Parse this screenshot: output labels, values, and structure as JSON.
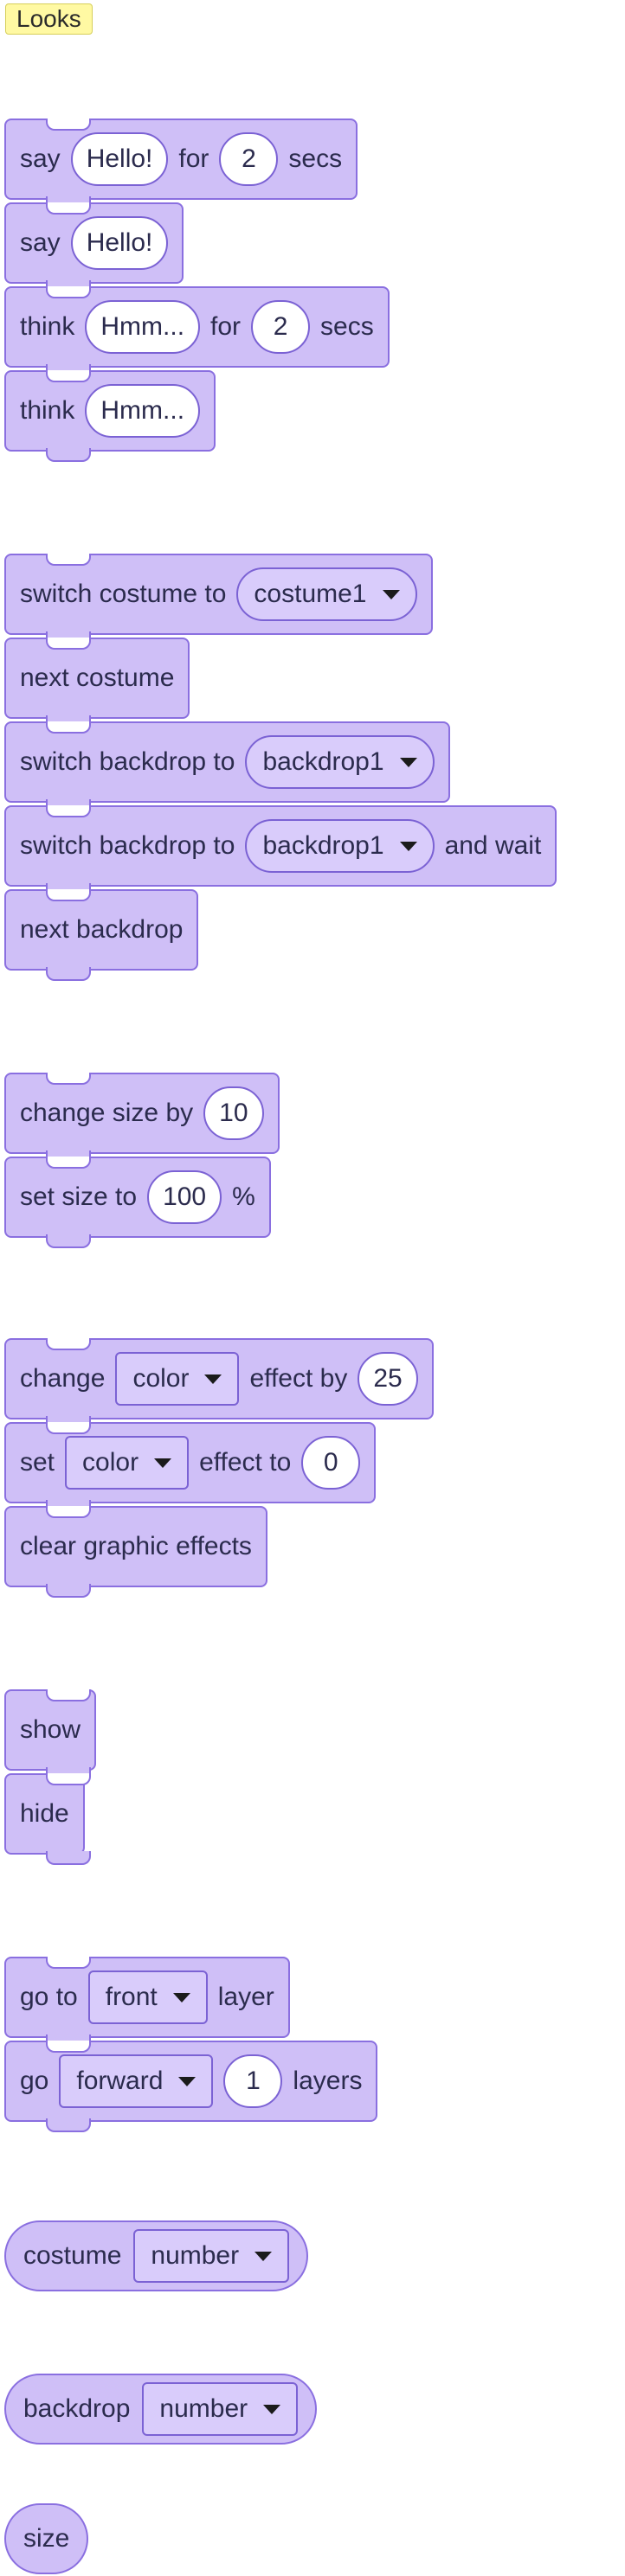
{
  "category": "Looks",
  "blocks": {
    "say_for": {
      "word1": "say",
      "message": "Hello!",
      "word2": "for",
      "secs_value": "2",
      "word3": "secs"
    },
    "say": {
      "word1": "say",
      "message": "Hello!"
    },
    "think_for": {
      "word1": "think",
      "message": "Hmm...",
      "word2": "for",
      "secs_value": "2",
      "word3": "secs"
    },
    "think": {
      "word1": "think",
      "message": "Hmm..."
    },
    "switch_costume": {
      "text": "switch  costume  to",
      "value": "costume1"
    },
    "next_costume": {
      "text": "next  costume"
    },
    "switch_backdrop": {
      "text": "switch  backdrop  to",
      "value": "backdrop1"
    },
    "switch_backdrop_wait": {
      "text": "switch  backdrop  to",
      "value": "backdrop1",
      "tail": "and  wait"
    },
    "next_backdrop": {
      "text": "next  backdrop"
    },
    "change_size": {
      "text": "change  size  by",
      "value": "10"
    },
    "set_size": {
      "text": "set  size  to",
      "value": "100",
      "unit": "%"
    },
    "change_effect": {
      "word1": "change",
      "effect": "color",
      "word2": "effect  by",
      "value": "25"
    },
    "set_effect": {
      "word1": "set",
      "effect": "color",
      "word2": "effect  to",
      "value": "0"
    },
    "clear_effects": {
      "text": "clear  graphic  effects"
    },
    "show": {
      "text": "show"
    },
    "hide": {
      "text": "hide"
    },
    "go_to_layer": {
      "word1": "go  to",
      "value": "front",
      "word2": "layer"
    },
    "go_layers": {
      "word1": "go",
      "direction": "forward",
      "value": "1",
      "word2": "layers"
    },
    "costume_reporter": {
      "word": "costume",
      "value": "number"
    },
    "backdrop_reporter": {
      "word": "backdrop",
      "value": "number"
    },
    "size_reporter": {
      "word": "size"
    }
  }
}
